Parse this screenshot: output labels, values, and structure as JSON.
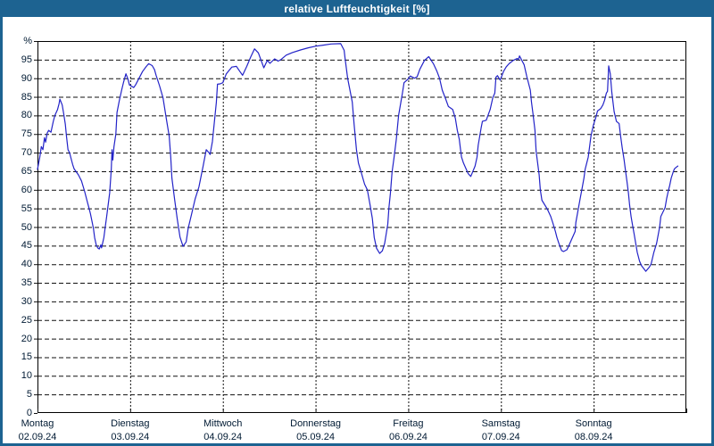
{
  "window": {
    "title": "relative Luftfeuchtigkeit [%]"
  },
  "colors": {
    "frame_blue": "#1d6391",
    "title_text": "#ffffff",
    "plot_bg": "#ffffff",
    "line_blue": "#2323c8",
    "grid_black": "#111111",
    "axis_black": "#000000",
    "label_text": "#001a33"
  },
  "chart_data": {
    "type": "line",
    "title": "relative Luftfeuchtigkeit [%]",
    "ylabel": "%",
    "y_top_label": "%",
    "ylim": [
      0,
      100
    ],
    "yticks": [
      0,
      5,
      10,
      15,
      20,
      25,
      30,
      35,
      40,
      45,
      50,
      55,
      60,
      65,
      70,
      75,
      80,
      85,
      90,
      95
    ],
    "x_hours_range": [
      0,
      168
    ],
    "grid": "dashed",
    "legend_position": "none",
    "days": [
      {
        "name": "Montag",
        "date": "02.09.24"
      },
      {
        "name": "Dienstag",
        "date": "03.09.24"
      },
      {
        "name": "Mittwoch",
        "date": "04.09.24"
      },
      {
        "name": "Donnerstag",
        "date": "05.09.24"
      },
      {
        "name": "Freitag",
        "date": "06.09.24"
      },
      {
        "name": "Samstag",
        "date": "07.09.24"
      },
      {
        "name": "Sonntag",
        "date": "08.09.24"
      }
    ],
    "series": [
      {
        "name": "relative Luftfeuchtigkeit",
        "unit": "%",
        "color": "#2323c8",
        "points": [
          [
            0,
            65.5
          ],
          [
            0.6,
            68.8
          ],
          [
            1,
            71.6
          ],
          [
            1.4,
            70.8
          ],
          [
            1.8,
            74
          ],
          [
            2.1,
            72.8
          ],
          [
            2.5,
            75.2
          ],
          [
            2.9,
            76
          ],
          [
            3.5,
            75.5
          ],
          [
            4.1,
            78.4
          ],
          [
            4.5,
            80
          ],
          [
            5.2,
            81.6
          ],
          [
            5.6,
            83.2
          ],
          [
            5.8,
            84.4
          ],
          [
            6.4,
            82.8
          ],
          [
            6.8,
            80.4
          ],
          [
            7.2,
            77.6
          ],
          [
            7.5,
            74.4
          ],
          [
            7.9,
            70.8
          ],
          [
            8.3,
            70
          ],
          [
            9.1,
            66.8
          ],
          [
            9.5,
            65.6
          ],
          [
            10.6,
            64
          ],
          [
            11,
            63.2
          ],
          [
            11.4,
            62.4
          ],
          [
            12.2,
            59.6
          ],
          [
            12.9,
            56.8
          ],
          [
            13.3,
            55.2
          ],
          [
            13.7,
            53.6
          ],
          [
            14.1,
            51.6
          ],
          [
            14.5,
            49.6
          ],
          [
            14.8,
            47.2
          ],
          [
            15.2,
            45.2
          ],
          [
            15.6,
            44.4
          ],
          [
            16,
            44.1
          ],
          [
            16.4,
            45.2
          ],
          [
            16.6,
            44.4
          ],
          [
            17.2,
            47.2
          ],
          [
            17.5,
            49.6
          ],
          [
            17.9,
            52.8
          ],
          [
            18.3,
            56
          ],
          [
            18.7,
            59.2
          ],
          [
            18.9,
            62.4
          ],
          [
            19.1,
            65.6
          ],
          [
            19.3,
            70.8
          ],
          [
            19.5,
            68
          ],
          [
            19.8,
            71.6
          ],
          [
            20.3,
            75
          ],
          [
            20.6,
            80.8
          ],
          [
            21.2,
            84
          ],
          [
            21.8,
            86.8
          ],
          [
            22.3,
            89
          ],
          [
            22.9,
            91.2
          ],
          [
            23.4,
            89.8
          ],
          [
            23.8,
            88.2
          ],
          [
            24.9,
            87.5
          ],
          [
            25.4,
            88.2
          ],
          [
            26.3,
            90
          ],
          [
            27.2,
            91.8
          ],
          [
            28.2,
            93.2
          ],
          [
            28.8,
            93.9
          ],
          [
            29.7,
            93.4
          ],
          [
            30.3,
            92.3
          ],
          [
            30.7,
            90.8
          ],
          [
            31.6,
            88
          ],
          [
            32.5,
            84.8
          ],
          [
            33.3,
            79.5
          ],
          [
            34.1,
            74.4
          ],
          [
            34.5,
            68.8
          ],
          [
            34.8,
            63.2
          ],
          [
            35.5,
            57.5
          ],
          [
            36.2,
            52
          ],
          [
            36.9,
            47.3
          ],
          [
            37.7,
            44.8
          ],
          [
            38.5,
            46
          ],
          [
            39,
            49.6
          ],
          [
            39.9,
            53.5
          ],
          [
            40.8,
            57.5
          ],
          [
            41.8,
            60.8
          ],
          [
            42.9,
            66.4
          ],
          [
            43.7,
            70.8
          ],
          [
            44.4,
            70
          ],
          [
            44.7,
            69.5
          ],
          [
            45.3,
            73
          ],
          [
            45.9,
            79.2
          ],
          [
            46.3,
            83.5
          ],
          [
            46.6,
            88.4
          ],
          [
            47.3,
            88.5
          ],
          [
            48,
            88.8
          ],
          [
            48.9,
            91.2
          ],
          [
            50.3,
            93
          ],
          [
            51.5,
            93.2
          ],
          [
            52.4,
            91.8
          ],
          [
            53.1,
            90.8
          ],
          [
            54.2,
            93.2
          ],
          [
            55.2,
            95.7
          ],
          [
            56.2,
            97.9
          ],
          [
            57.2,
            96.8
          ],
          [
            58.6,
            92.8
          ],
          [
            59.5,
            94.8
          ],
          [
            60.2,
            94
          ],
          [
            61.4,
            95.2
          ],
          [
            62.3,
            94.6
          ],
          [
            63,
            95
          ],
          [
            63.7,
            95.6
          ],
          [
            64.4,
            96.2
          ],
          [
            66,
            96.9
          ],
          [
            68.1,
            97.6
          ],
          [
            70.2,
            98.2
          ],
          [
            72,
            98.6
          ],
          [
            74,
            98.9
          ],
          [
            76,
            99.2
          ],
          [
            78.5,
            99.3
          ],
          [
            79.4,
            97.5
          ],
          [
            79.6,
            95.6
          ],
          [
            80.3,
            90
          ],
          [
            81.5,
            83.6
          ],
          [
            82,
            77.5
          ],
          [
            82.6,
            70.8
          ],
          [
            83.1,
            67.2
          ],
          [
            83.8,
            64.8
          ],
          [
            84.7,
            61.5
          ],
          [
            85.4,
            60
          ],
          [
            86.1,
            56
          ],
          [
            86.7,
            52.3
          ],
          [
            87.2,
            47.2
          ],
          [
            87.8,
            44.3
          ],
          [
            88.6,
            42.9
          ],
          [
            89.3,
            43.6
          ],
          [
            89.9,
            45.6
          ],
          [
            90.7,
            50.8
          ],
          [
            91,
            55.2
          ],
          [
            91.4,
            59.2
          ],
          [
            91.8,
            64.8
          ],
          [
            92.3,
            68.5
          ],
          [
            92.9,
            73.5
          ],
          [
            93.5,
            80
          ],
          [
            94.5,
            86
          ],
          [
            94.9,
            88.8
          ],
          [
            96,
            89.8
          ],
          [
            96.5,
            90.6
          ],
          [
            97.6,
            90
          ],
          [
            98.3,
            90.4
          ],
          [
            99,
            92.4
          ],
          [
            100.2,
            94.8
          ],
          [
            101.3,
            95.8
          ],
          [
            102.5,
            93.9
          ],
          [
            103.4,
            91.9
          ],
          [
            104.1,
            90
          ],
          [
            104.8,
            86.8
          ],
          [
            105.7,
            84.4
          ],
          [
            106.4,
            82.4
          ],
          [
            107.5,
            81.6
          ],
          [
            108.2,
            79.2
          ],
          [
            108.7,
            76
          ],
          [
            109.2,
            73.6
          ],
          [
            109.5,
            71.2
          ],
          [
            109.8,
            68.8
          ],
          [
            110.3,
            67.2
          ],
          [
            111.5,
            64.4
          ],
          [
            112.2,
            63.6
          ],
          [
            113.3,
            66.4
          ],
          [
            113.8,
            68.8
          ],
          [
            114.1,
            72
          ],
          [
            114.5,
            74.4
          ],
          [
            114.9,
            76.8
          ],
          [
            115.2,
            78.4
          ],
          [
            116.2,
            78.7
          ],
          [
            117.2,
            81.6
          ],
          [
            117.9,
            84.8
          ],
          [
            118.4,
            86
          ],
          [
            118.7,
            90.3
          ],
          [
            119.1,
            90.7
          ],
          [
            119.8,
            89.5
          ],
          [
            120.7,
            91.9
          ],
          [
            121.4,
            93.1
          ],
          [
            122.1,
            93.9
          ],
          [
            123.2,
            94.8
          ],
          [
            124.2,
            95.3
          ],
          [
            124.5,
            95
          ],
          [
            124.8,
            96
          ],
          [
            126,
            93.6
          ],
          [
            126.7,
            90.4
          ],
          [
            127.6,
            86.8
          ],
          [
            127.9,
            83.6
          ],
          [
            128.3,
            80.4
          ],
          [
            128.8,
            76
          ],
          [
            129.1,
            70.4
          ],
          [
            129.5,
            67.2
          ],
          [
            129.9,
            64
          ],
          [
            130.2,
            60
          ],
          [
            130.6,
            57.2
          ],
          [
            131.8,
            55.2
          ],
          [
            132.2,
            54.4
          ],
          [
            132.9,
            52.8
          ],
          [
            133.4,
            51.2
          ],
          [
            134.1,
            48.8
          ],
          [
            134.5,
            47.2
          ],
          [
            135,
            45.6
          ],
          [
            135.7,
            43.7
          ],
          [
            136.2,
            43.4
          ],
          [
            137.1,
            43.9
          ],
          [
            137.8,
            45.5
          ],
          [
            139.2,
            48.8
          ],
          [
            139.4,
            51.2
          ],
          [
            139.8,
            53.6
          ],
          [
            140.5,
            57.6
          ],
          [
            141,
            60.4
          ],
          [
            141.5,
            63.2
          ],
          [
            141.8,
            65.5
          ],
          [
            142.2,
            67.2
          ],
          [
            142.6,
            68.8
          ],
          [
            142.9,
            71.2
          ],
          [
            143.3,
            74.4
          ],
          [
            143.8,
            76.8
          ],
          [
            144,
            77.6
          ],
          [
            144.5,
            79.2
          ],
          [
            145,
            81.2
          ],
          [
            145.8,
            81.8
          ],
          [
            146.4,
            82.8
          ],
          [
            146.8,
            84
          ],
          [
            147.1,
            85.2
          ],
          [
            147.3,
            86
          ],
          [
            147.6,
            86.5
          ],
          [
            147.9,
            93.3
          ],
          [
            148.3,
            91.2
          ],
          [
            148.7,
            86.2
          ],
          [
            149.3,
            81
          ],
          [
            149.9,
            78.4
          ],
          [
            150.6,
            77.8
          ],
          [
            151,
            74.4
          ],
          [
            151.4,
            71.2
          ],
          [
            151.9,
            68
          ],
          [
            152.2,
            65.6
          ],
          [
            152.6,
            62.4
          ],
          [
            153,
            59.2
          ],
          [
            153.3,
            56
          ],
          [
            153.7,
            52.8
          ],
          [
            154.1,
            50.4
          ],
          [
            154.5,
            48
          ],
          [
            154.9,
            45.6
          ],
          [
            155.3,
            43.2
          ],
          [
            155.9,
            40.8
          ],
          [
            156.4,
            39.6
          ],
          [
            157,
            38.8
          ],
          [
            157.5,
            38.1
          ],
          [
            158.4,
            39.2
          ],
          [
            158.9,
            40.1
          ],
          [
            159.6,
            43.2
          ],
          [
            160.3,
            45.6
          ],
          [
            161.1,
            50
          ],
          [
            161.4,
            52.8
          ],
          [
            162.5,
            55.2
          ],
          [
            162.9,
            57.6
          ],
          [
            163.4,
            60
          ],
          [
            163.7,
            61.2
          ],
          [
            164.1,
            63.2
          ],
          [
            164.6,
            64.8
          ],
          [
            164.9,
            65.6
          ],
          [
            165.3,
            66
          ],
          [
            165.8,
            66.4
          ]
        ]
      }
    ]
  }
}
